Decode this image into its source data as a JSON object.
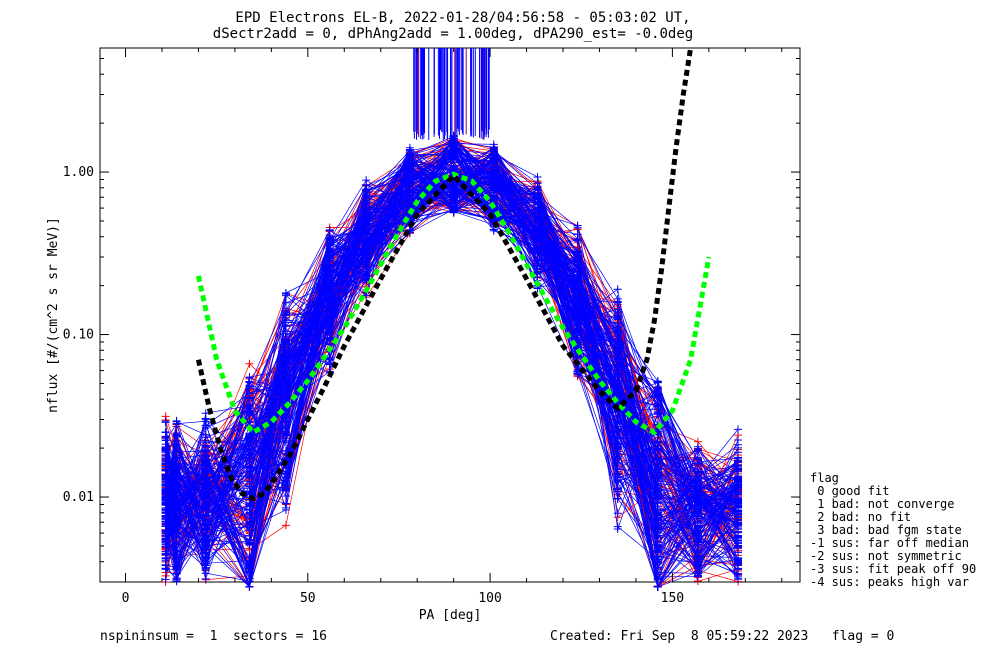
{
  "chart_data": {
    "type": "scatter",
    "title_line1": "EPD Electrons EL-B, 2022-01-28/04:56:58 - 05:03:02 UT,",
    "title_line2": "dSectr2add = 0, dPhAng2add = 1.00deg, dPA290_est=  -0.0deg",
    "xlabel": "PA [deg]",
    "ylabel": "nflux [#/(cm^2 s sr MeV)]",
    "xlim": [
      -7,
      185
    ],
    "ylim": [
      0.003,
      5.8
    ],
    "y_scale": "log",
    "x_ticks": [
      {
        "value": 0,
        "label": "0"
      },
      {
        "value": 50,
        "label": "50"
      },
      {
        "value": 100,
        "label": "100"
      },
      {
        "value": 150,
        "label": "150"
      }
    ],
    "y_ticks": [
      {
        "value": 0.01,
        "label": "0.01"
      },
      {
        "value": 0.1,
        "label": "0.10"
      },
      {
        "value": 1.0,
        "label": "1.00"
      }
    ],
    "grid": false,
    "series": [
      {
        "color": "#ff0000",
        "style": "line+cross"
      },
      {
        "color": "#0000ff",
        "style": "line+cross"
      },
      {
        "color": "#00ff00",
        "style": "dashed-fit",
        "x": [
          20,
          25,
          30,
          35,
          40,
          45,
          50,
          55,
          60,
          65,
          70,
          75,
          80,
          85,
          90,
          95,
          100,
          105,
          110,
          115,
          120,
          125,
          130,
          135,
          140,
          145,
          150,
          155,
          160
        ],
        "y": [
          0.23,
          0.07,
          0.034,
          0.025,
          0.029,
          0.038,
          0.052,
          0.075,
          0.11,
          0.17,
          0.27,
          0.43,
          0.66,
          0.88,
          0.97,
          0.88,
          0.66,
          0.43,
          0.27,
          0.17,
          0.11,
          0.075,
          0.052,
          0.038,
          0.029,
          0.025,
          0.034,
          0.07,
          0.3
        ]
      },
      {
        "color": "#000000",
        "style": "dashed-fit",
        "x": [
          20,
          23,
          26,
          29,
          32,
          35,
          38,
          41,
          45,
          50,
          55,
          60,
          70,
          80,
          90,
          100,
          110,
          120,
          130,
          135,
          140,
          143,
          145,
          147,
          149,
          151,
          153,
          155
        ],
        "y": [
          0.07,
          0.035,
          0.02,
          0.013,
          0.0105,
          0.0098,
          0.0105,
          0.013,
          0.018,
          0.03,
          0.05,
          0.085,
          0.22,
          0.55,
          0.95,
          0.55,
          0.22,
          0.085,
          0.045,
          0.035,
          0.045,
          0.07,
          0.12,
          0.25,
          0.6,
          1.4,
          3.0,
          5.8
        ]
      }
    ],
    "legend_placement": "right",
    "legend": {
      "title": "flag",
      "items": [
        " 0 good fit",
        " 1 bad: not converge",
        " 2 bad: no fit",
        " 3 bad: bad fgm state",
        "-1 sus: far off median",
        "-2 sus: not symmetric",
        "-3 sus: fit peak off 90",
        "-4 sus: peaks high var"
      ]
    },
    "footer_left": "nspininsum =  1  sectors = 16",
    "footer_right": "Created: Fri Sep  8 05:59:22 2023   flag = 0"
  }
}
